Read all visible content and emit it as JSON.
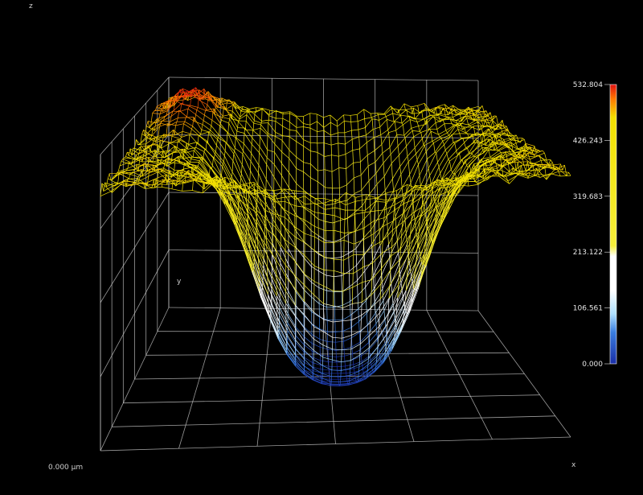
{
  "chart_data": {
    "type": "surface-3d",
    "axis_labels": {
      "x": "x",
      "y": "y",
      "z": "z"
    },
    "origin_label": "0.000 μm",
    "zlim": [
      0,
      532.804
    ],
    "colorbar": {
      "ticks": [
        "532.804",
        "426.243",
        "319.683",
        "213.122",
        "106.561",
        "0.000"
      ],
      "tick_values": [
        532.804,
        426.243,
        319.683,
        213.122,
        106.561,
        0.0
      ],
      "stops": [
        {
          "value": 0.0,
          "color": "#1a2ea8"
        },
        {
          "value": 60.0,
          "color": "#3a7ee0"
        },
        {
          "value": 95.0,
          "color": "#aee0ff"
        },
        {
          "value": 140.0,
          "color": "#ffffff"
        },
        {
          "value": 205.0,
          "color": "#ffffff"
        },
        {
          "value": 225.0,
          "color": "#f6ef3a"
        },
        {
          "value": 470.0,
          "color": "#f2e000"
        },
        {
          "value": 505.0,
          "color": "#ff7a00"
        },
        {
          "value": 532.804,
          "color": "#e01010"
        }
      ]
    },
    "surface": {
      "description_free": true,
      "rim_height": 470,
      "well_depth": 470,
      "ridge_peak": 532.804
    }
  }
}
